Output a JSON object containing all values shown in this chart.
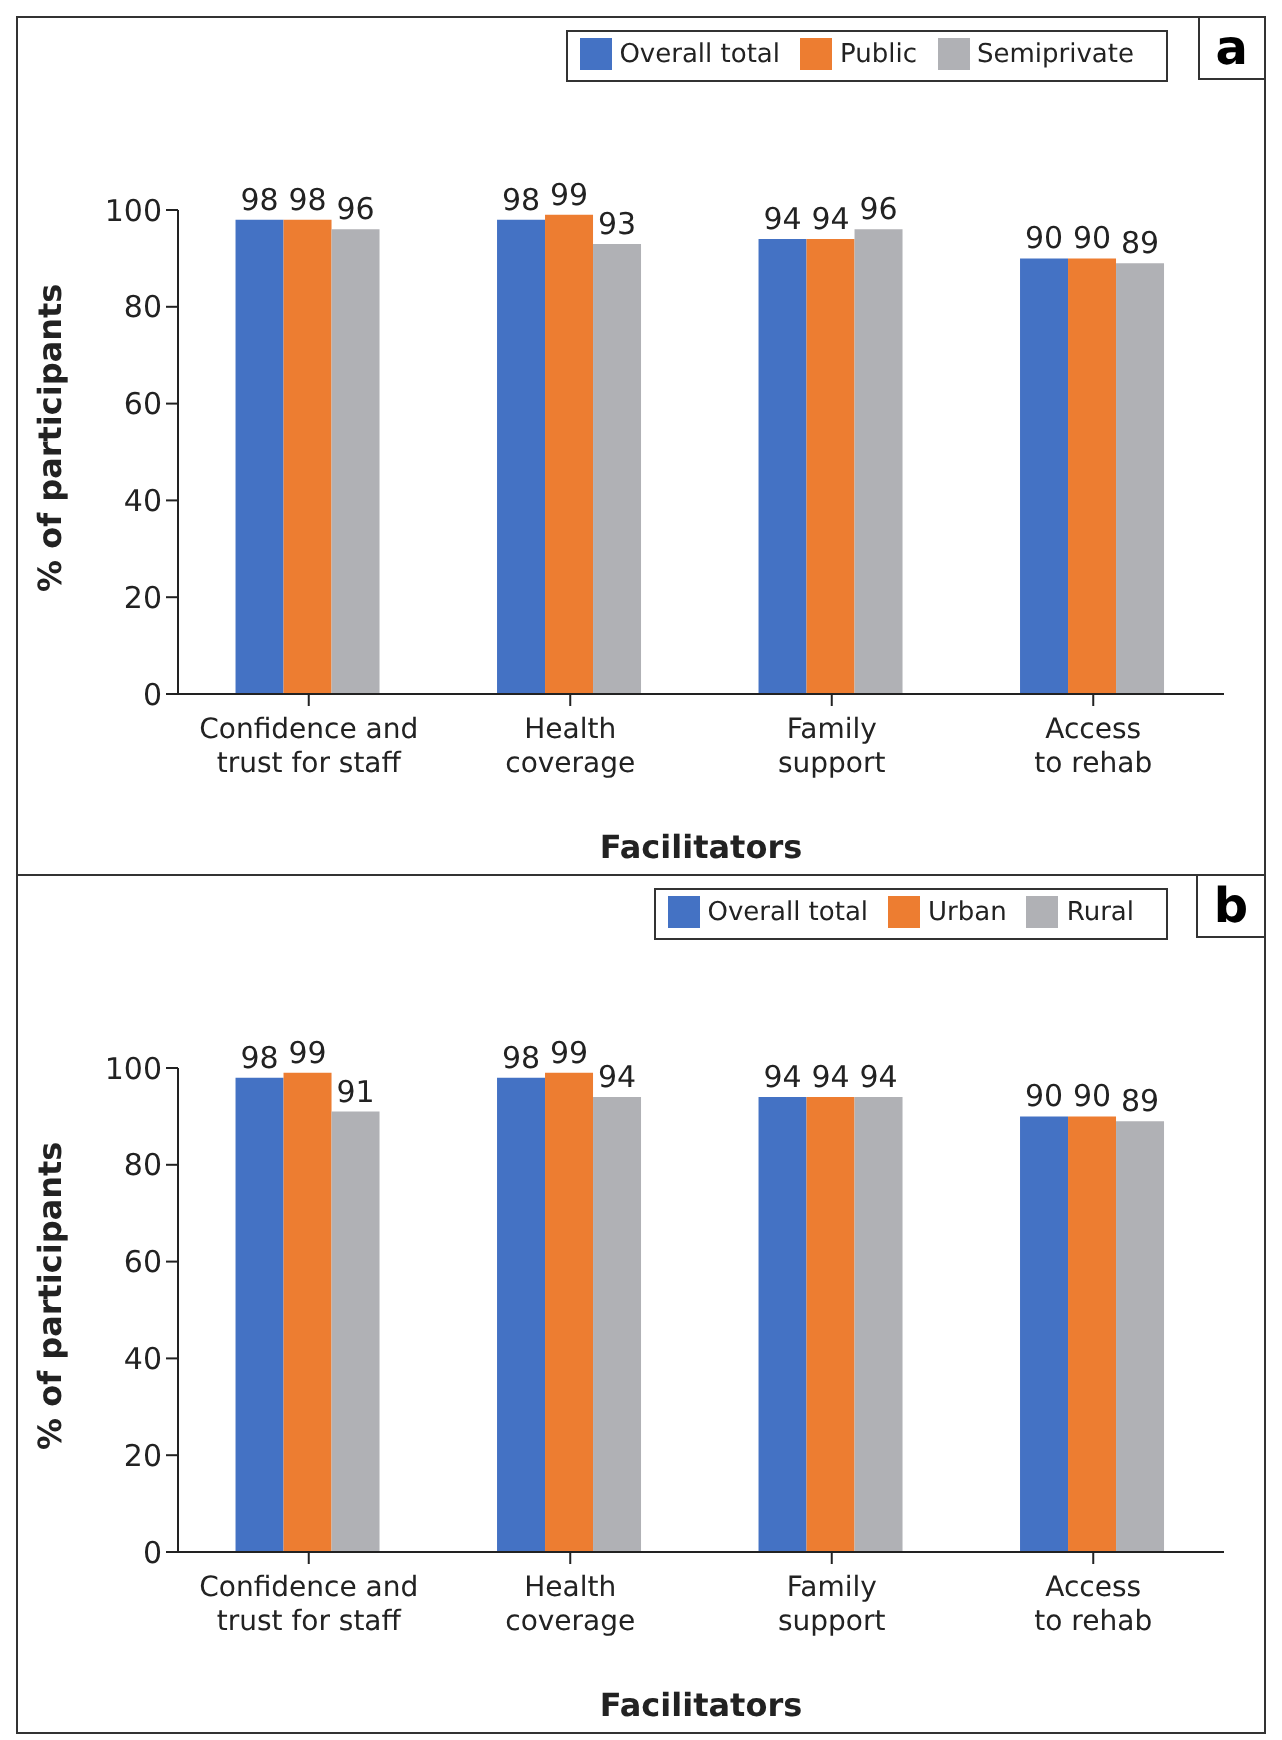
{
  "chart_data": [
    {
      "type": "bar",
      "title": "a",
      "xlabel": "Facilitators",
      "ylabel": "% of participants",
      "categories": [
        "Confidence and\ntrust for staff",
        "Health\ncoverage",
        "Family\nsupport",
        "Access\nto rehab"
      ],
      "series": [
        {
          "name": "Overall total",
          "color": "#4472c4",
          "values": [
            98,
            98,
            94,
            90
          ]
        },
        {
          "name": "Public",
          "color": "#ed7d31",
          "values": [
            98,
            99,
            94,
            90
          ]
        },
        {
          "name": "Semiprivate",
          "color": "#b0b1b5",
          "values": [
            96,
            93,
            96,
            89
          ]
        }
      ],
      "ylim": [
        0,
        100
      ],
      "yticks": [
        0,
        20,
        40,
        60,
        80,
        100
      ],
      "grid": false,
      "legend": "top right",
      "data_labels": true
    },
    {
      "type": "bar",
      "title": "b",
      "xlabel": "Facilitators",
      "ylabel": "% of participants",
      "categories": [
        "Confidence and\ntrust for staff",
        "Health\ncoverage",
        "Family\nsupport",
        "Access\nto rehab"
      ],
      "series": [
        {
          "name": "Overall total",
          "color": "#4472c4",
          "values": [
            98,
            98,
            94,
            90
          ]
        },
        {
          "name": "Urban",
          "color": "#ed7d31",
          "values": [
            99,
            99,
            94,
            90
          ]
        },
        {
          "name": "Rural",
          "color": "#b0b1b5",
          "values": [
            91,
            94,
            94,
            89
          ]
        }
      ],
      "ylim": [
        0,
        100
      ],
      "yticks": [
        0,
        20,
        40,
        60,
        80,
        100
      ],
      "grid": false,
      "legend": "top right",
      "data_labels": true
    }
  ]
}
